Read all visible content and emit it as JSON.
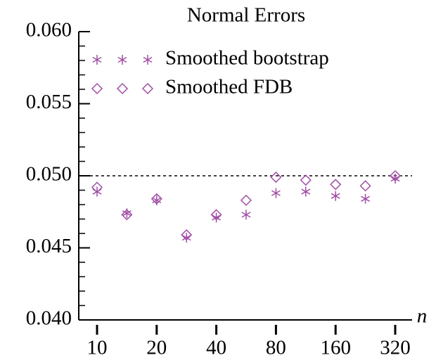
{
  "chart_data": {
    "type": "scatter",
    "title": "Normal Errors",
    "xlabel": "n",
    "categories": [
      "10",
      null,
      "20",
      null,
      "40",
      null,
      "80",
      null,
      "160",
      null,
      "320"
    ],
    "series": [
      {
        "name": "Smoothed bootstrap",
        "color": "#a14fa6",
        "marker": "asterisk",
        "values": [
          0.0489,
          0.0474,
          0.0483,
          0.0457,
          0.0471,
          0.0473,
          0.0488,
          0.0489,
          0.0486,
          0.0484,
          0.0498
        ]
      },
      {
        "name": "Smoothed FDB",
        "color": "#a14fa6",
        "marker": "diamond",
        "values": [
          0.0492,
          0.0473,
          0.0484,
          0.0459,
          0.0473,
          0.0483,
          0.0499,
          0.0497,
          0.0494,
          0.0493,
          0.05
        ]
      }
    ],
    "ylim": [
      0.04,
      0.06
    ],
    "yticks": [
      {
        "value": 0.04,
        "label": "0.040"
      },
      {
        "value": 0.045,
        "label": "0.045"
      },
      {
        "value": 0.05,
        "label": "0.050"
      },
      {
        "value": 0.055,
        "label": "0.055"
      },
      {
        "value": 0.06,
        "label": "0.060"
      }
    ],
    "yminorticks": [
      0.041,
      0.042,
      0.043,
      0.044,
      0.046,
      0.047,
      0.048,
      0.049,
      0.051,
      0.052,
      0.053,
      0.054,
      0.056,
      0.057,
      0.058,
      0.059
    ],
    "hline": 0.05,
    "legend": "upper left",
    "grid": false
  }
}
